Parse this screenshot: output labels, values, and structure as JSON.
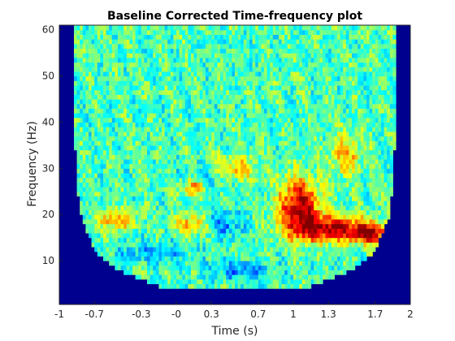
{
  "chart_data": {
    "type": "heatmap",
    "title": "Baseline Corrected Time-frequency plot",
    "xlabel": "Time (s)",
    "ylabel": "Frequency (Hz)",
    "xlim": [
      -1,
      2
    ],
    "ylim": [
      0.5,
      61
    ],
    "x_ticks": [
      -1,
      -0.7,
      -0.3,
      0,
      0.3,
      0.7,
      1,
      1.3,
      1.7,
      2
    ],
    "x_tick_labels": [
      "-1",
      "-0.7",
      "-0.3",
      "-0",
      "0.3",
      "0.7",
      "1",
      "1.3",
      "1.7",
      "2"
    ],
    "y_ticks": [
      10,
      20,
      30,
      40,
      50,
      60
    ],
    "y_tick_labels": [
      "10",
      "20",
      "30",
      "40",
      "50",
      "60"
    ],
    "colormap": "jet",
    "background_color": "#00008f",
    "grid": false,
    "valid_region": {
      "description": "cone of influence; cells with frequency below the edge are empty",
      "edge_points": [
        {
          "time": -0.88,
          "freq": 61
        },
        {
          "time": -0.86,
          "freq": 30
        },
        {
          "time": -0.82,
          "freq": 20
        },
        {
          "time": -0.7,
          "freq": 12
        },
        {
          "time": -0.5,
          "freq": 8
        },
        {
          "time": -0.3,
          "freq": 6
        },
        {
          "time": -0.1,
          "freq": 4
        },
        {
          "time": 0.5,
          "freq": 3.5
        },
        {
          "time": 1.1,
          "freq": 4
        },
        {
          "time": 1.3,
          "freq": 6
        },
        {
          "time": 1.5,
          "freq": 8
        },
        {
          "time": 1.7,
          "freq": 12
        },
        {
          "time": 1.82,
          "freq": 20
        },
        {
          "time": 1.86,
          "freq": 30
        },
        {
          "time": 1.88,
          "freq": 61
        }
      ]
    },
    "hot_spots": [
      {
        "time": 1.05,
        "freq": 22,
        "intensity": 0.95,
        "time_spread": 0.12,
        "freq_spread": 4
      },
      {
        "time": 1.3,
        "freq": 17,
        "intensity": 0.9,
        "time_spread": 0.22,
        "freq_spread": 2
      },
      {
        "time": 1.65,
        "freq": 16,
        "intensity": 0.85,
        "time_spread": 0.12,
        "freq_spread": 1.5
      },
      {
        "time": 0.15,
        "freq": 26,
        "intensity": 0.55,
        "time_spread": 0.08,
        "freq_spread": 1.5
      },
      {
        "time": -0.5,
        "freq": 19,
        "intensity": 0.5,
        "time_spread": 0.1,
        "freq_spread": 1.5
      },
      {
        "time": 0.15,
        "freq": 18,
        "intensity": 0.5,
        "time_spread": 0.1,
        "freq_spread": 1.5
      },
      {
        "time": 1.45,
        "freq": 33,
        "intensity": 0.45,
        "time_spread": 0.1,
        "freq_spread": 3
      },
      {
        "time": 0.5,
        "freq": 30,
        "intensity": 0.4,
        "time_spread": 0.15,
        "freq_spread": 2
      }
    ],
    "cold_spots": [
      {
        "time": 0.4,
        "freq": 18,
        "intensity": 0.45,
        "time_spread": 0.12,
        "freq_spread": 2
      },
      {
        "time": 0.55,
        "freq": 8,
        "intensity": 0.4,
        "time_spread": 0.2,
        "freq_spread": 1.5
      },
      {
        "time": -0.2,
        "freq": 12,
        "intensity": 0.35,
        "time_spread": 0.2,
        "freq_spread": 1.5
      },
      {
        "time": 0.25,
        "freq": 28,
        "intensity": 0.3,
        "time_spread": 0.15,
        "freq_spread": 2
      }
    ]
  }
}
